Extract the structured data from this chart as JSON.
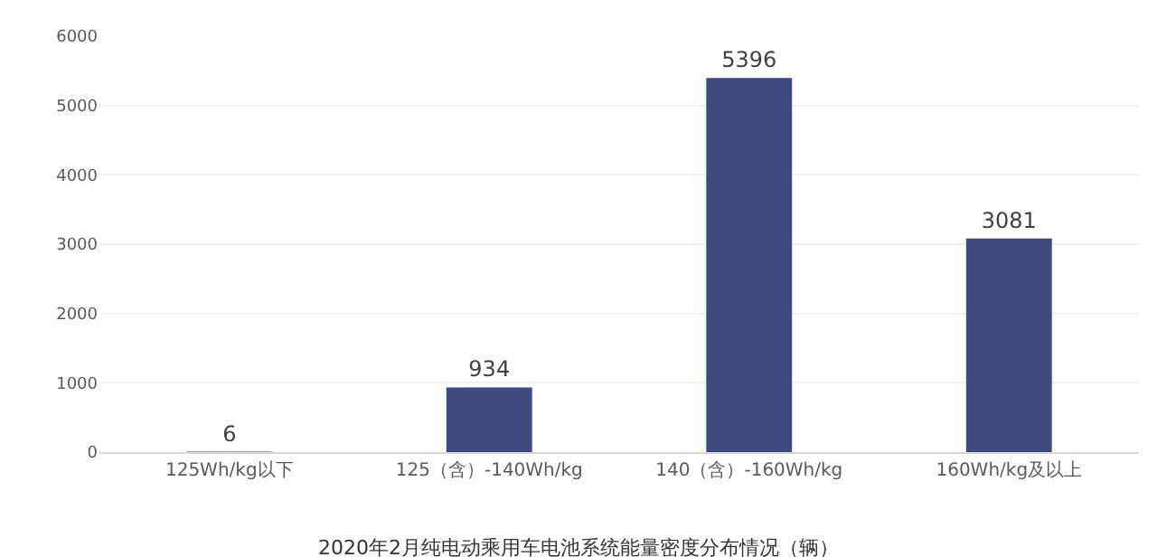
{
  "chart_data": {
    "type": "bar",
    "title": "2020年2月纯电动乘用车电池系统能量密度分布情况（辆）",
    "categories": [
      "125Wh/kg以下",
      "125（含）-140Wh/kg",
      "140（含）-160Wh/kg",
      "160Wh/kg及以上"
    ],
    "values": [
      6,
      934,
      5396,
      3081
    ],
    "color": "#3d4a80",
    "ylim": [
      0,
      6000
    ],
    "yticks": [
      0,
      1000,
      2000,
      3000,
      4000,
      5000,
      6000
    ],
    "grid": "y",
    "data_labels": true
  }
}
